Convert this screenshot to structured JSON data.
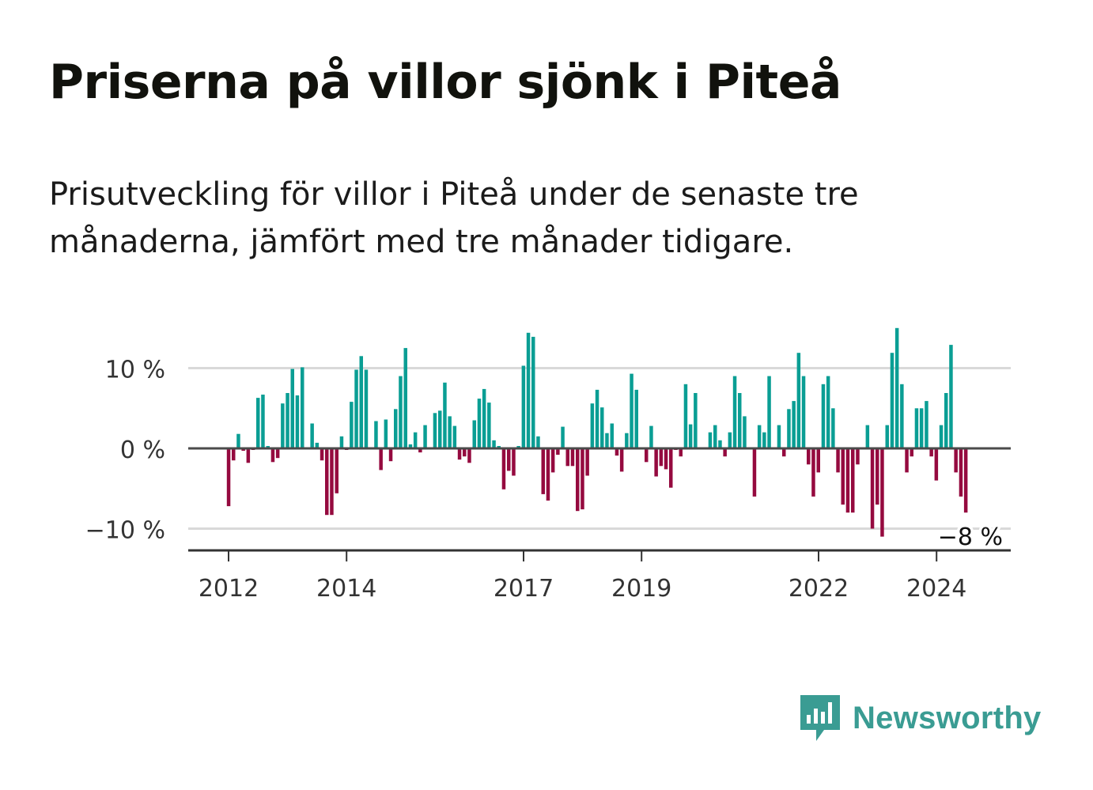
{
  "title": "Priserna på villor sjönk i Piteå",
  "subtitle": "Prisutveckling för villor i Piteå under de senaste tre månaderna, jämfört med tre månader tidigare.",
  "brand": {
    "name": "Newsworthy",
    "icon": "newsworthy-logo-icon"
  },
  "colors": {
    "positive": "#0a9e94",
    "negative": "#950a3f",
    "grid": "#d9d9d9",
    "axis": "#4a4a4a",
    "brand": "#3a9c93"
  },
  "chart_data": {
    "type": "bar",
    "title": "Priserna på villor sjönk i Piteå",
    "xlabel": "",
    "ylabel": "",
    "unit": "%",
    "ylim": [
      -12.5,
      15
    ],
    "x_range": [
      2011.58,
      2025.5
    ],
    "y_ticks": [
      {
        "value": 10,
        "label": "10 %"
      },
      {
        "value": 0,
        "label": "0 %"
      },
      {
        "value": -10,
        "label": "−10 %"
      }
    ],
    "x_ticks": [
      {
        "value": 2012,
        "label": "2012"
      },
      {
        "value": 2014,
        "label": "2014"
      },
      {
        "value": 2017,
        "label": "2017"
      },
      {
        "value": 2019,
        "label": "2019"
      },
      {
        "value": 2022,
        "label": "2022"
      },
      {
        "value": 2024,
        "label": "2024"
      }
    ],
    "last_value_label": "−8 %",
    "start": 2012.0,
    "step": 0.0833,
    "values": [
      -7.2,
      -1.5,
      1.8,
      -0.3,
      -1.8,
      -0.2,
      6.3,
      6.7,
      0.3,
      -1.7,
      -1.2,
      5.6,
      6.9,
      9.9,
      6.6,
      10.1,
      -0.1,
      3.1,
      0.7,
      -1.5,
      -8.3,
      -8.3,
      -5.6,
      1.5,
      -0.2,
      5.8,
      9.8,
      11.5,
      9.8,
      -0.1,
      3.4,
      -2.7,
      3.6,
      -1.6,
      4.9,
      9.0,
      12.5,
      0.5,
      2.0,
      -0.5,
      2.9,
      -0.1,
      4.4,
      4.7,
      8.2,
      4.0,
      2.8,
      -1.4,
      -1.0,
      -1.8,
      3.5,
      6.2,
      7.4,
      5.7,
      1.0,
      0.3,
      -5.1,
      -2.8,
      -3.4,
      0.3,
      10.3,
      14.4,
      13.9,
      1.5,
      -5.7,
      -6.5,
      -3.0,
      -0.8,
      2.7,
      -2.2,
      -2.2,
      -7.8,
      -7.6,
      -3.4,
      5.6,
      7.3,
      5.1,
      1.9,
      3.1,
      -0.9,
      -2.9,
      1.9,
      9.3,
      7.3,
      -0.1,
      -1.7,
      2.8,
      -3.5,
      -2.2,
      -2.6,
      -4.9,
      -0.2,
      -1.0,
      8.0,
      3.0,
      6.9,
      -0.1,
      -0.1,
      2.0,
      2.9,
      1.0,
      -1.0,
      2.0,
      9.0,
      6.9,
      4.0,
      -0.1,
      -6.0,
      2.9,
      2.0,
      9.0,
      -0.1,
      2.9,
      -1.0,
      4.9,
      5.9,
      11.9,
      9.0,
      -2.0,
      -6.0,
      -3.0,
      8.0,
      9.0,
      5.0,
      -3.0,
      -7.0,
      -8.0,
      -8.0,
      -2.0,
      -0.1,
      2.9,
      -10.0,
      -7.0,
      -11.0,
      2.9,
      11.9,
      15.0,
      8.0,
      -3.0,
      -1.0,
      5.0,
      5.0,
      5.9,
      -1.0,
      -4.0,
      2.9,
      6.9,
      12.9,
      -3.0,
      -6.0,
      -8.0
    ]
  }
}
